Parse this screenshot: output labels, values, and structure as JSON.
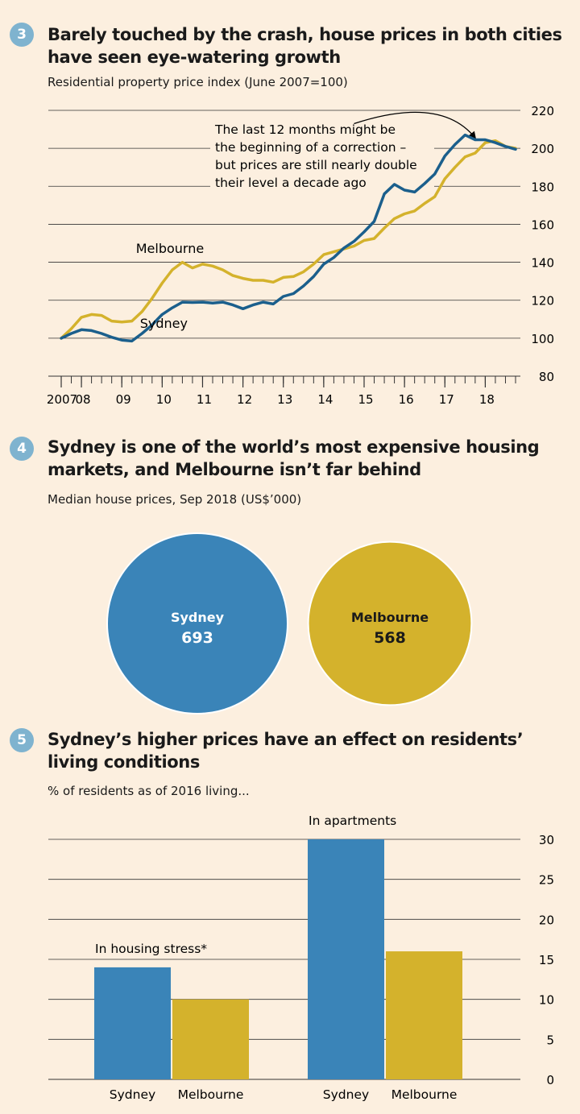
{
  "charts": [
    {
      "number": "3",
      "title": "Barely touched by the crash, house prices in both cities have seen eye-watering growth",
      "subtitle": "Residential property price index (June 2007=100)"
    },
    {
      "number": "4",
      "title": "Sydney is one of the world’s most expensive housing markets, and Melbourne isn’t far behind",
      "subtitle": "Median house prices, Sep 2018 (US$’000)"
    },
    {
      "number": "5",
      "title": "Sydney’s higher prices have an effect on residents’ living conditions",
      "subtitle": "% of residents as of 2016 living..."
    }
  ],
  "colors": {
    "background": "#fcefdf",
    "sydney": "#3a84b8",
    "sydney_line": "#1b5f8c",
    "melbourne": "#d4b22c",
    "grid": "#333333"
  },
  "chart_data": [
    {
      "type": "line",
      "title": "Barely touched by the crash, house prices in both cities have seen eye-watering growth",
      "subtitle": "Residential property price index (June 2007=100)",
      "ylim": [
        80,
        220
      ],
      "yticks": [
        80,
        100,
        120,
        140,
        160,
        180,
        200,
        220
      ],
      "xlim": [
        2007.5,
        2018.75
      ],
      "xticks": [
        {
          "value": 2007.5,
          "label": "2007"
        },
        {
          "value": 2008,
          "label": "08"
        },
        {
          "value": 2009,
          "label": "09"
        },
        {
          "value": 2010,
          "label": "10"
        },
        {
          "value": 2011,
          "label": "11"
        },
        {
          "value": 2012,
          "label": "12"
        },
        {
          "value": 2013,
          "label": "13"
        },
        {
          "value": 2014,
          "label": "14"
        },
        {
          "value": 2015,
          "label": "15"
        },
        {
          "value": 2016,
          "label": "16"
        },
        {
          "value": 2017,
          "label": "17"
        },
        {
          "value": 2018,
          "label": "18"
        }
      ],
      "grid": true,
      "annotation": [
        "The last 12 months might be",
        "the beginning of a correction –",
        "but prices are still nearly double",
        "their level a decade ago"
      ],
      "series": [
        {
          "name": "Sydney",
          "x": [
            2007.5,
            2007.75,
            2008.0,
            2008.25,
            2008.5,
            2008.75,
            2009.0,
            2009.25,
            2009.5,
            2009.75,
            2010.0,
            2010.25,
            2010.5,
            2010.75,
            2011.0,
            2011.25,
            2011.5,
            2011.75,
            2012.0,
            2012.25,
            2012.5,
            2012.75,
            2013.0,
            2013.25,
            2013.5,
            2013.75,
            2014.0,
            2014.25,
            2014.5,
            2014.75,
            2015.0,
            2015.25,
            2015.5,
            2015.75,
            2016.0,
            2016.25,
            2016.5,
            2016.75,
            2017.0,
            2017.25,
            2017.5,
            2017.75,
            2018.0,
            2018.25,
            2018.5,
            2018.75
          ],
          "values": [
            100,
            102.5,
            104.5,
            104,
            102.5,
            100.5,
            99,
            98.5,
            102.5,
            107,
            112.5,
            116,
            119,
            118.8,
            119,
            118.5,
            119,
            117.5,
            115.5,
            117.5,
            119,
            118,
            122,
            123.5,
            127.5,
            132.5,
            139,
            142.5,
            147.5,
            151,
            156,
            161.5,
            176,
            181,
            178,
            177,
            181.5,
            186.5,
            196,
            202,
            207,
            204.5,
            204.5,
            203,
            201,
            199.5
          ]
        },
        {
          "name": "Melbourne",
          "x": [
            2007.5,
            2007.75,
            2008.0,
            2008.25,
            2008.5,
            2008.75,
            2009.0,
            2009.25,
            2009.5,
            2009.75,
            2010.0,
            2010.25,
            2010.5,
            2010.75,
            2011.0,
            2011.25,
            2011.5,
            2011.75,
            2012.0,
            2012.25,
            2012.5,
            2012.75,
            2013.0,
            2013.25,
            2013.5,
            2013.75,
            2014.0,
            2014.25,
            2014.5,
            2014.75,
            2015.0,
            2015.25,
            2015.5,
            2015.75,
            2016.0,
            2016.25,
            2016.5,
            2016.75,
            2017.0,
            2017.25,
            2017.5,
            2017.75,
            2018.0,
            2018.25,
            2018.5,
            2018.75
          ],
          "values": [
            100,
            105,
            111,
            112.5,
            112,
            109,
            108.5,
            109,
            114,
            121,
            129,
            136,
            140,
            137,
            139,
            138,
            136,
            133,
            131.5,
            130.5,
            130.5,
            129.5,
            132,
            132.5,
            135,
            139,
            144,
            145.5,
            147,
            148.5,
            151.5,
            152.5,
            158,
            163,
            165.5,
            167,
            171,
            174.5,
            184,
            190,
            195.5,
            197.5,
            203,
            204,
            201,
            200
          ]
        }
      ]
    },
    {
      "type": "bubble",
      "title": "Sydney is one of the world’s most expensive housing markets, and Melbourne isn’t far behind",
      "subtitle": "Median house prices, Sep 2018 (US$’000)",
      "categories": [
        "Sydney",
        "Melbourne"
      ],
      "values": [
        693,
        568
      ]
    },
    {
      "type": "bar",
      "title": "Sydney’s higher prices have an effect on residents’ living conditions",
      "subtitle": "% of residents as of 2016 living...",
      "ylim": [
        0,
        30
      ],
      "yticks": [
        0,
        5,
        10,
        15,
        20,
        25,
        30
      ],
      "grid": true,
      "groups": [
        {
          "label": "In housing stress*",
          "categories": [
            "Sydney",
            "Melbourne"
          ],
          "values": [
            14,
            10
          ]
        },
        {
          "label": "In apartments",
          "categories": [
            "Sydney",
            "Melbourne"
          ],
          "values": [
            30,
            16
          ]
        }
      ]
    }
  ]
}
